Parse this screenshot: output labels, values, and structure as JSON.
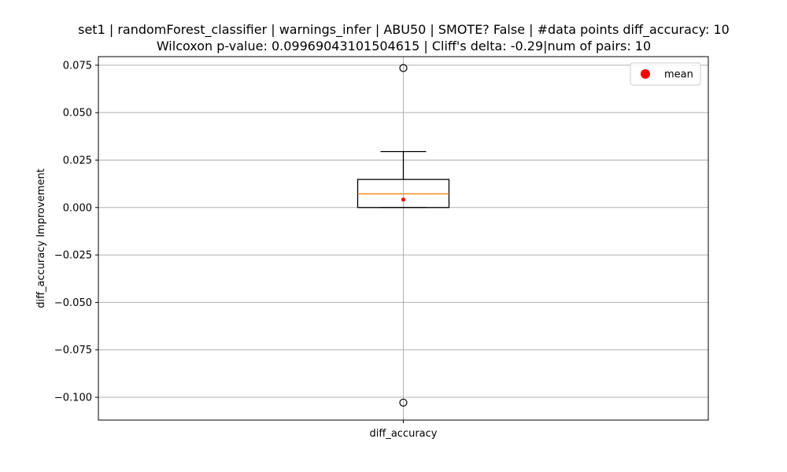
{
  "chart_data": {
    "type": "box",
    "title": "set1 | randomForest_classifier | warnings_infer | ABU50 | SMOTE? False | #data points diff_accuracy: 10",
    "subtitle": "Wilcoxon p-value: 0.09969043101504615 | Cliff's delta: -0.29|num of pairs: 10",
    "xlabel": "",
    "ylabel": "diff_accuracy Improvement",
    "categories": [
      "diff_accuracy"
    ],
    "box": {
      "q1": 0.0,
      "median": 0.0072,
      "q3": 0.0148,
      "whisker_low": 0.0,
      "whisker_high": 0.0295,
      "mean": 0.0042,
      "outliers": [
        0.0735,
        -0.1028
      ]
    },
    "ylim": [
      -0.112,
      0.0795
    ],
    "yticks": [
      0.075,
      0.05,
      0.025,
      0.0,
      -0.025,
      -0.05,
      -0.075,
      -0.1
    ],
    "ytick_labels": [
      "0.075",
      "0.050",
      "0.025",
      "0.000",
      "−0.025",
      "−0.050",
      "−0.075",
      "−0.100"
    ],
    "grid": true,
    "legend": {
      "position": "top-right",
      "entries": [
        {
          "label": "mean",
          "color": "#ff0000",
          "marker": "circle"
        }
      ]
    },
    "colors": {
      "median": "#ff7f0e",
      "mean": "#ff0000",
      "box": "#000000",
      "grid": "#b0b0b0"
    }
  }
}
